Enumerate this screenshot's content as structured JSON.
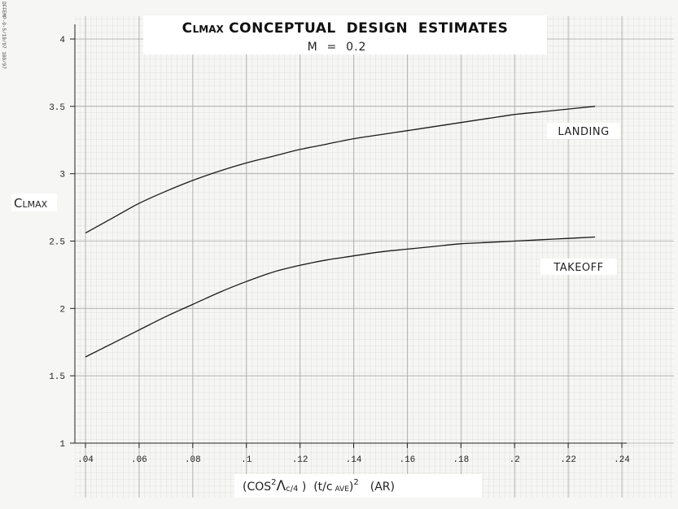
{
  "chart_data": {
    "type": "line",
    "title_prefix_large": "C",
    "title_prefix_small": "LMAX",
    "title_rest": " CONCEPTUAL  DESIGN  ESTIMATES",
    "subtitle": "M  =  0.2",
    "ylabel_large": "C",
    "ylabel_small": "LMAX",
    "xlabel": {
      "open": "(COS",
      "sup1": "2",
      "lambda": "Λ",
      "sub": "c/4",
      "mid": " )  (t/c",
      "sub2": " AVE",
      "close": ")",
      "sup2": "2",
      "ar": "(AR)"
    },
    "side_note": "DFFEMP-0-5/19/97 100/97",
    "xlim": [
      0.04,
      0.24
    ],
    "ylim": [
      1,
      4
    ],
    "x_ticks": [
      ".04",
      ".06",
      ".08",
      ".1",
      ".12",
      ".14",
      ".16",
      ".18",
      ".2",
      ".22",
      ".24"
    ],
    "y_ticks": [
      "1",
      "1.5",
      "2",
      "2.5",
      "3",
      "3.5",
      "4"
    ],
    "grid": true,
    "series": [
      {
        "name": "LANDING",
        "x": [
          0.04,
          0.05,
          0.06,
          0.07,
          0.08,
          0.09,
          0.1,
          0.11,
          0.12,
          0.13,
          0.14,
          0.15,
          0.16,
          0.17,
          0.18,
          0.19,
          0.2,
          0.21,
          0.22,
          0.23
        ],
        "y": [
          2.56,
          2.67,
          2.78,
          2.87,
          2.95,
          3.02,
          3.08,
          3.13,
          3.18,
          3.22,
          3.26,
          3.29,
          3.32,
          3.35,
          3.38,
          3.41,
          3.44,
          3.46,
          3.48,
          3.5
        ]
      },
      {
        "name": "TAKEOFF",
        "x": [
          0.04,
          0.05,
          0.06,
          0.07,
          0.08,
          0.09,
          0.1,
          0.11,
          0.12,
          0.13,
          0.14,
          0.15,
          0.16,
          0.17,
          0.18,
          0.19,
          0.2,
          0.21,
          0.22,
          0.23
        ],
        "y": [
          1.64,
          1.74,
          1.84,
          1.94,
          2.03,
          2.12,
          2.2,
          2.27,
          2.32,
          2.36,
          2.39,
          2.42,
          2.44,
          2.46,
          2.48,
          2.49,
          2.5,
          2.51,
          2.52,
          2.53
        ]
      }
    ]
  }
}
